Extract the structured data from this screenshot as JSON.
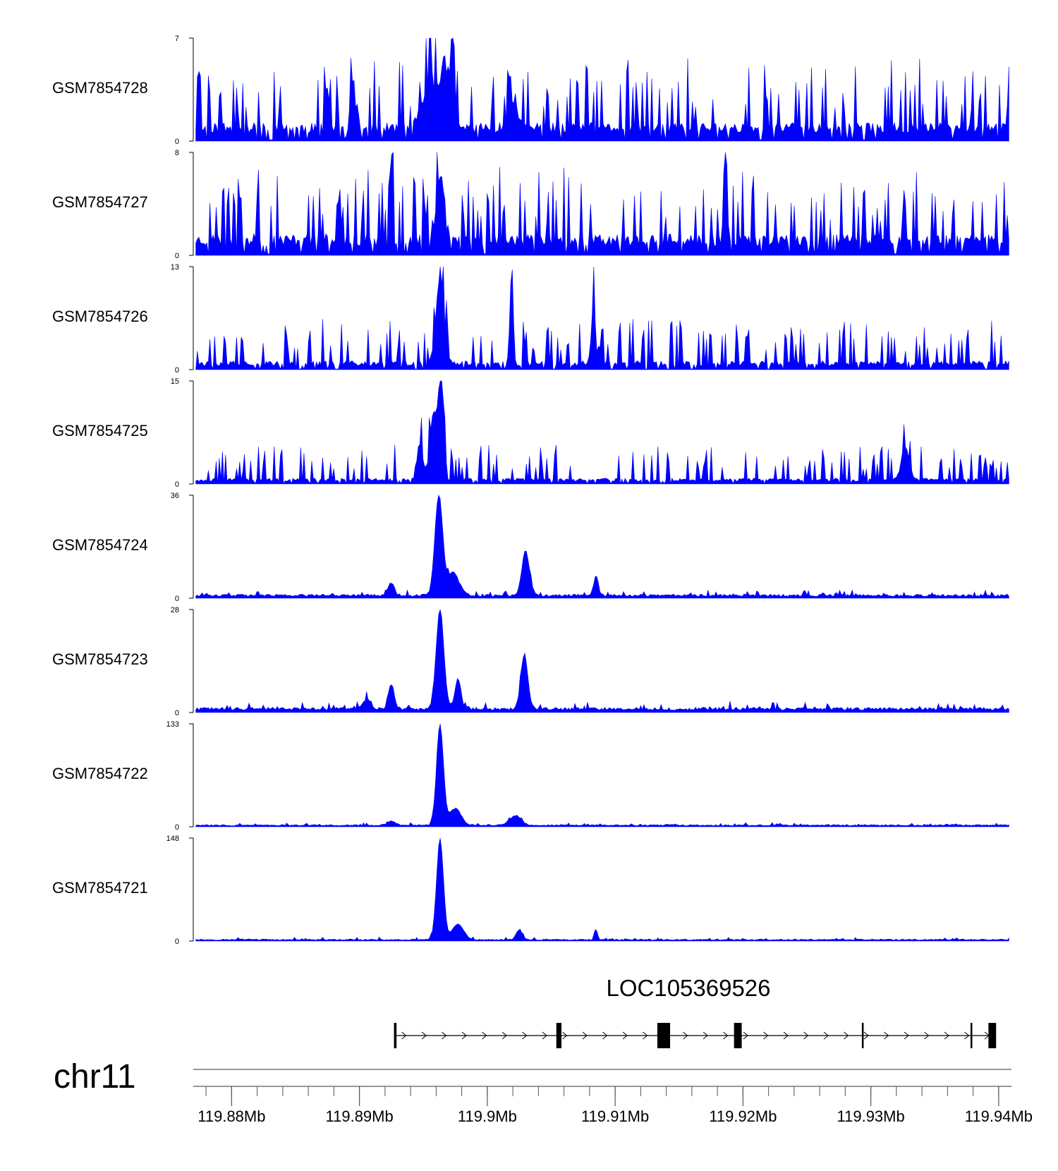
{
  "chart_data": {
    "type": "area",
    "title": "",
    "genome_region": {
      "chromosome": "chr11",
      "start_mb": 119.877,
      "end_mb": 119.941
    },
    "series_color": "#0000ff",
    "tracks": [
      {
        "name": "GSM7854728",
        "ymax": 7,
        "ymin": 0,
        "ymax_label": "7",
        "ymin_label": "0",
        "profile": "noise",
        "peaks": [
          [
            119.8955,
            0.18,
            4.0
          ],
          [
            119.8967,
            0.1,
            4.6
          ],
          [
            119.8973,
            0.05,
            6.9
          ],
          [
            119.8895,
            0.08,
            3.1
          ],
          [
            119.902,
            0.1,
            2.6
          ]
        ],
        "baseline": 0.9,
        "noise": 3.2,
        "seed": 11
      },
      {
        "name": "GSM7854727",
        "ymax": 8,
        "ymin": 0,
        "ymax_label": "8",
        "ymin_label": "0",
        "profile": "noise",
        "peaks": [
          [
            119.8925,
            0.04,
            7.8
          ],
          [
            119.8963,
            0.12,
            5.2
          ],
          [
            119.9186,
            0.04,
            7.8
          ]
        ],
        "baseline": 1.2,
        "noise": 3.8,
        "seed": 23
      },
      {
        "name": "GSM7854726",
        "ymax": 13,
        "ymin": 0,
        "ymax_label": "13",
        "ymin_label": "0",
        "profile": "noise",
        "peaks": [
          [
            119.8963,
            0.1,
            11.0
          ],
          [
            119.9019,
            0.04,
            12.8
          ],
          [
            119.9083,
            0.05,
            8.4
          ]
        ],
        "baseline": 0.8,
        "noise": 4.0,
        "seed": 37
      },
      {
        "name": "GSM7854725",
        "ymax": 15,
        "ymin": 0,
        "ymax_label": "15",
        "ymin_label": "0",
        "profile": "noise",
        "peaks": [
          [
            119.8964,
            0.07,
            14.8
          ],
          [
            119.8958,
            0.1,
            9.5
          ],
          [
            119.8947,
            0.08,
            5.0
          ],
          [
            119.9327,
            0.1,
            5.0
          ]
        ],
        "baseline": 0.6,
        "noise": 3.6,
        "seed": 49
      },
      {
        "name": "GSM7854724",
        "ymax": 36,
        "ymin": 0,
        "ymax_label": "36",
        "ymin_label": "0",
        "profile": "peaks",
        "peaks": [
          [
            119.8962,
            0.1,
            35.0
          ],
          [
            119.8973,
            0.16,
            8.0
          ],
          [
            119.903,
            0.1,
            15.5
          ],
          [
            119.8925,
            0.08,
            4.5
          ],
          [
            119.9085,
            0.06,
            7.0
          ]
        ],
        "baseline": 1.0,
        "noise": 1.8,
        "seed": 61
      },
      {
        "name": "GSM7854723",
        "ymax": 28,
        "ymin": 0,
        "ymax_label": "28",
        "ymin_label": "0",
        "profile": "peaks",
        "peaks": [
          [
            119.8963,
            0.1,
            27.5
          ],
          [
            119.8977,
            0.08,
            8.0
          ],
          [
            119.9029,
            0.09,
            15.0
          ],
          [
            119.8925,
            0.08,
            6.5
          ],
          [
            119.8906,
            0.1,
            3.0
          ]
        ],
        "baseline": 1.0,
        "noise": 1.8,
        "seed": 73
      },
      {
        "name": "GSM7854722",
        "ymax": 133,
        "ymin": 0,
        "ymax_label": "133",
        "ymin_label": "0",
        "profile": "peaks",
        "peaks": [
          [
            119.8963,
            0.09,
            131.0
          ],
          [
            119.8975,
            0.15,
            22.0
          ],
          [
            119.9022,
            0.15,
            12.0
          ],
          [
            119.8925,
            0.1,
            6.0
          ]
        ],
        "baseline": 2.0,
        "noise": 3.0,
        "seed": 83
      },
      {
        "name": "GSM7854721",
        "ymax": 148,
        "ymin": 0,
        "ymax_label": "148",
        "ymin_label": "0",
        "profile": "peaks",
        "peaks": [
          [
            119.8963,
            0.09,
            146.0
          ],
          [
            119.8977,
            0.15,
            22.0
          ],
          [
            119.9025,
            0.08,
            14.0
          ],
          [
            119.9085,
            0.04,
            14.0
          ]
        ],
        "baseline": 2.0,
        "noise": 3.0,
        "seed": 97
      }
    ],
    "gene": {
      "name": "LOC105369526",
      "strand": "+",
      "start_mb": 119.8927,
      "end_mb": 119.9398,
      "exons": [
        {
          "start_mb": 119.8927,
          "end_mb": 119.8929
        },
        {
          "start_mb": 119.9054,
          "end_mb": 119.9058
        },
        {
          "start_mb": 119.9133,
          "end_mb": 119.9143
        },
        {
          "start_mb": 119.9193,
          "end_mb": 119.9199
        },
        {
          "start_mb": 119.9293,
          "end_mb": 119.9294
        },
        {
          "start_mb": 119.9378,
          "end_mb": 119.9379
        },
        {
          "start_mb": 119.9392,
          "end_mb": 119.9398
        }
      ]
    },
    "axis": {
      "chromosome_label": "chr11",
      "major_ticks": [
        {
          "value": 119.88,
          "label": "119.88Mb"
        },
        {
          "value": 119.89,
          "label": "119.89Mb"
        },
        {
          "value": 119.9,
          "label": "119.9Mb"
        },
        {
          "value": 119.91,
          "label": "119.91Mb"
        },
        {
          "value": 119.92,
          "label": "119.92Mb"
        },
        {
          "value": 119.93,
          "label": "119.93Mb"
        },
        {
          "value": 119.94,
          "label": "119.94Mb"
        }
      ],
      "minor_tick_step_mb": 0.002
    }
  }
}
